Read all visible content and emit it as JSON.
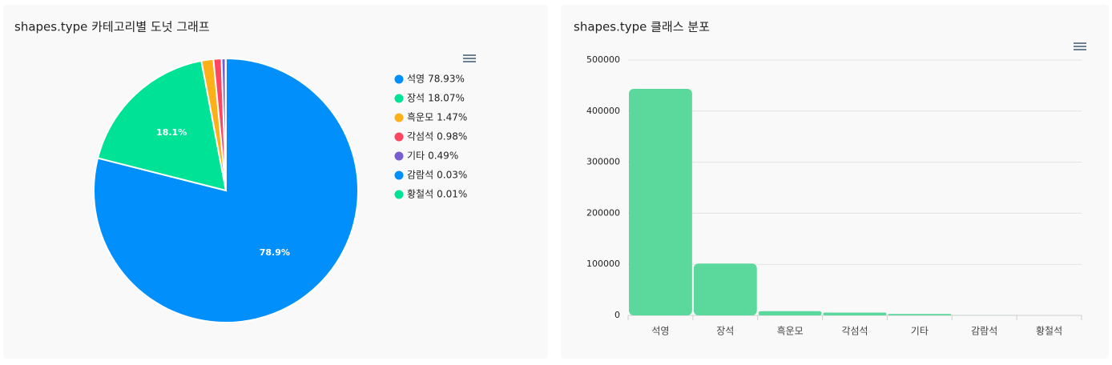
{
  "chart_data": [
    {
      "type": "pie",
      "title": "shapes.type 카테고리별 도넛 그래프",
      "categories": [
        "석영",
        "장석",
        "흑운모",
        "각섬석",
        "기타",
        "감람석",
        "황철석"
      ],
      "values": [
        78.93,
        18.07,
        1.47,
        0.98,
        0.49,
        0.03,
        0.01
      ],
      "legend_labels": [
        "78.93%",
        "18.07%",
        "1.47%",
        "0.98%",
        "0.49%",
        "0.03%",
        "0.01%"
      ],
      "value_labels": [
        "78.9%",
        "18.1%",
        null,
        null,
        null,
        null,
        null
      ],
      "colors": [
        "#008ffb",
        "#00e396",
        "#feb019",
        "#ff4560",
        "#775dd0",
        "#008ffb",
        "#00e396"
      ]
    },
    {
      "type": "bar",
      "title": "shapes.type 클래스 분포",
      "categories": [
        "석영",
        "장석",
        "흑운모",
        "각섬석",
        "기타",
        "감람석",
        "황철석"
      ],
      "values": [
        443600,
        101500,
        8260,
        5510,
        2750,
        169,
        56
      ],
      "color": "#5bd89b",
      "ylim": [
        0,
        500000
      ],
      "yticks": [
        0,
        100000,
        200000,
        300000,
        400000,
        500000
      ],
      "grid": true
    }
  ]
}
